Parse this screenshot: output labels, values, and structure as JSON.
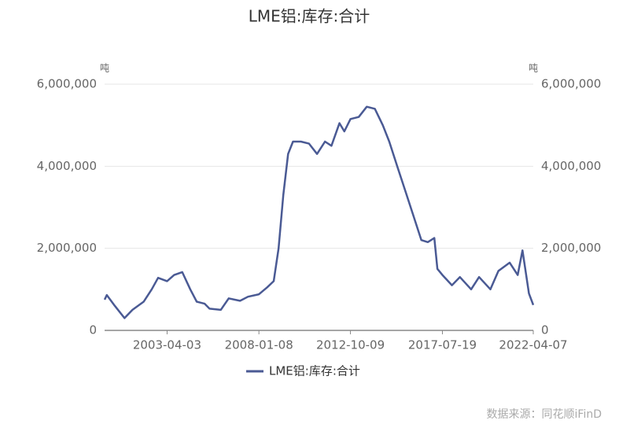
{
  "chart_data": {
    "type": "line",
    "title": "LME铝:库存:合计",
    "y_unit": "吨",
    "y2_unit": "吨",
    "source": "数据来源：同花顺iFinD",
    "x": [
      "2000-01-04",
      "2000-02-15",
      "2000-07-15",
      "2001-01-15",
      "2001-06-15",
      "2002-01-15",
      "2002-06-15",
      "2002-10-15",
      "2003-04-03",
      "2003-08-15",
      "2004-01-15",
      "2004-06-15",
      "2004-10-15",
      "2005-03-15",
      "2005-06-15",
      "2006-01-15",
      "2006-06-15",
      "2007-01-15",
      "2007-06-15",
      "2008-01-08",
      "2008-06-15",
      "2008-10-15",
      "2009-01-15",
      "2009-04-15",
      "2009-07-15",
      "2009-10-15",
      "2010-03-15",
      "2010-08-15",
      "2011-01-15",
      "2011-06-15",
      "2011-10-15",
      "2012-03-15",
      "2012-06-15",
      "2012-10-09",
      "2013-03-15",
      "2013-08-15",
      "2014-01-15",
      "2014-06-15",
      "2014-10-15",
      "2015-03-15",
      "2015-08-15",
      "2016-01-15",
      "2016-06-15",
      "2016-10-15",
      "2017-02-15",
      "2017-04-15",
      "2017-07-19",
      "2018-01-15",
      "2018-06-15",
      "2019-01-15",
      "2019-06-15",
      "2020-01-15",
      "2020-06-15",
      "2021-01-15",
      "2021-06-15",
      "2021-09-15",
      "2022-01-15",
      "2022-04-07"
    ],
    "series": [
      {
        "name": "LME铝:库存:合计",
        "color": "#4a5a94",
        "values": [
          750000,
          860000,
          600000,
          300000,
          500000,
          700000,
          1000000,
          1280000,
          1200000,
          1350000,
          1420000,
          1000000,
          700000,
          650000,
          530000,
          500000,
          780000,
          720000,
          820000,
          880000,
          1050000,
          1200000,
          2000000,
          3300000,
          4300000,
          4600000,
          4600000,
          4550000,
          4300000,
          4600000,
          4500000,
          5050000,
          4850000,
          5150000,
          5200000,
          5450000,
          5400000,
          5000000,
          4600000,
          4000000,
          3400000,
          2800000,
          2200000,
          2150000,
          2250000,
          1500000,
          1350000,
          1100000,
          1300000,
          1000000,
          1300000,
          1000000,
          1450000,
          1650000,
          1350000,
          1950000,
          900000,
          620000
        ]
      }
    ],
    "xlim": [
      "2000-01-04",
      "2022-04-07"
    ],
    "xticks": [
      "2003-04-03",
      "2008-01-08",
      "2012-10-09",
      "2017-07-19",
      "2022-04-07"
    ],
    "ylim": [
      0,
      6000000
    ],
    "yticks": [
      0,
      {
        "value": 2000000,
        "label": "2,000,000"
      },
      {
        "value": 4000000,
        "label": "4,000,000"
      },
      {
        "value": 6000000,
        "label": "6,000,000"
      }
    ],
    "y2lim": [
      0,
      6000000
    ],
    "y2ticks": [
      0,
      {
        "value": 2000000,
        "label": "2,000,000"
      },
      {
        "value": 4000000,
        "label": "4,000,000"
      },
      {
        "value": 6000000,
        "label": "6,000,000"
      }
    ],
    "grid": true
  }
}
